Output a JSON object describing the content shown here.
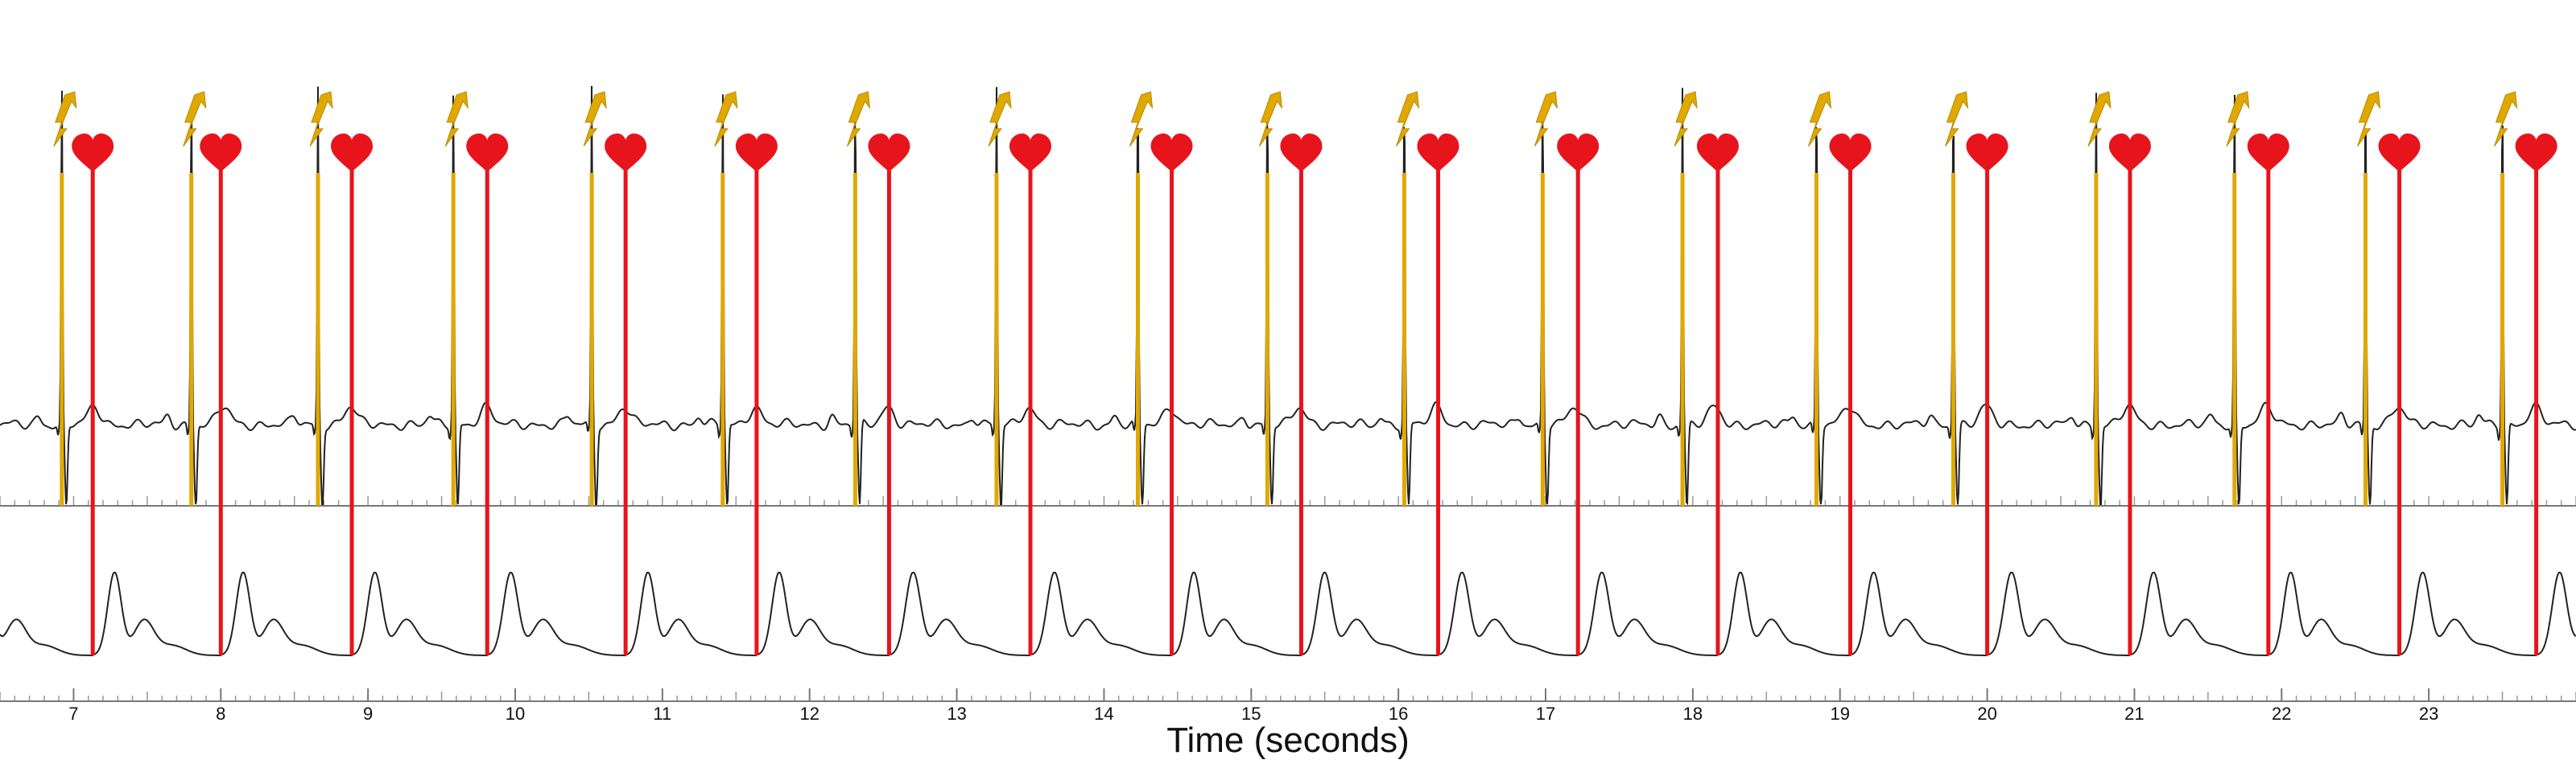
{
  "chart_data": {
    "type": "line",
    "title": "",
    "xlabel": "Time (seconds)",
    "xlim": [
      6.5,
      24.0
    ],
    "x_ticks": [
      7,
      8,
      9,
      10,
      11,
      12,
      13,
      14,
      15,
      16,
      17,
      18,
      19,
      20,
      21,
      22,
      23
    ],
    "x_tick_labels": [
      "7",
      "8",
      "9",
      "10",
      "11",
      "12",
      "13",
      "14",
      "15",
      "16",
      "17",
      "18",
      "19",
      "20",
      "21",
      "22",
      "23"
    ],
    "grid": false,
    "legend": "none",
    "colors": {
      "ecg_trace": "#222222",
      "pulse_trace": "#222222",
      "ecg_event_line": "#e0a800",
      "pulse_event_line": "#e8141c",
      "lightning_icon": "#e0a800",
      "heart_icon": "#e8141c",
      "axis_rule": "#777777"
    },
    "series": [
      {
        "kind": "ecg",
        "r_peak_times": [
          6.92,
          7.8,
          8.66,
          9.58,
          10.52,
          11.41,
          12.31,
          13.27,
          14.23,
          15.11,
          16.04,
          16.98,
          17.93,
          18.84,
          19.77,
          20.74,
          21.68,
          22.57,
          23.5
        ]
      },
      {
        "kind": "pulse_wave",
        "foot_times": [
          7.13,
          8.0,
          8.89,
          9.81,
          10.75,
          11.64,
          12.54,
          13.5,
          14.46,
          15.34,
          16.27,
          17.22,
          18.17,
          19.07,
          20.0,
          20.97,
          21.91,
          22.8,
          23.73
        ]
      }
    ],
    "annotations": [
      {
        "marker": "lightning-icon",
        "attached_to": "ecg r-peaks"
      },
      {
        "marker": "heart-icon",
        "attached_to": "pulse_wave feet"
      }
    ]
  }
}
